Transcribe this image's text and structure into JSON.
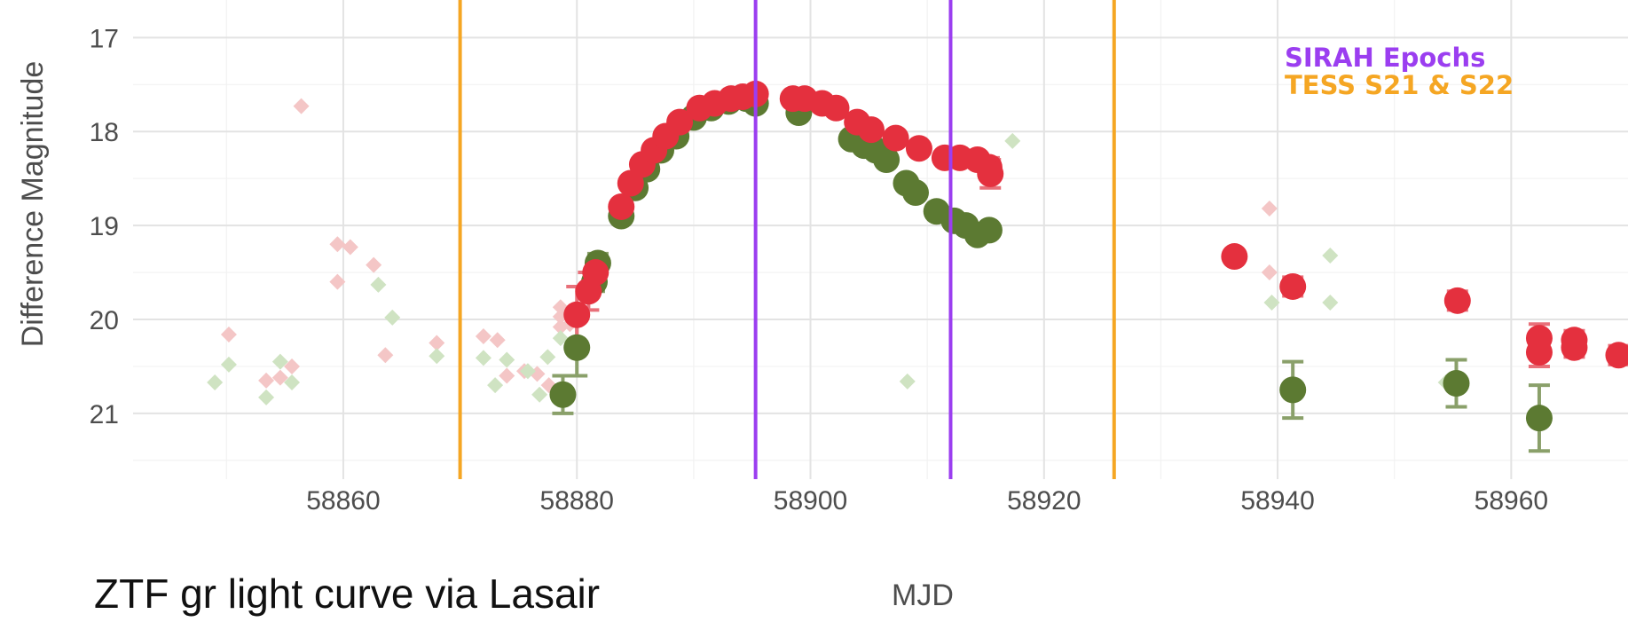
{
  "caption": "ZTF gr light curve via Lasair",
  "chart_data": {
    "type": "scatter",
    "title": "",
    "xlabel": "MJD",
    "ylabel": "Difference Magnitude",
    "xlim": [
      58842,
      58970
    ],
    "ylim": [
      21.7,
      16.6
    ],
    "y_reversed": true,
    "grid": true,
    "x_ticks": [
      "58860",
      "58880",
      "58900",
      "58920",
      "58940",
      "58960"
    ],
    "y_ticks": [
      "17",
      "18",
      "19",
      "20",
      "21"
    ],
    "colors": {
      "r_detection": "#e4303e",
      "g_detection": "#5c7a32",
      "r_limit": "#f4c6c6",
      "g_limit": "#cfe3c2",
      "sirah": "#9b3ef0",
      "tess": "#f5a623"
    },
    "vertical_lines": [
      {
        "group": "tess",
        "x": 58870
      },
      {
        "group": "sirah",
        "x": 58895.3
      },
      {
        "group": "sirah",
        "x": 58912
      },
      {
        "group": "tess",
        "x": 58926
      }
    ],
    "legend": {
      "placement": "top-right",
      "entries": [
        {
          "group": "sirah",
          "text": "SIRAH Epochs"
        },
        {
          "group": "tess",
          "text": "TESS S21 & S22"
        }
      ]
    },
    "series": [
      {
        "group": "g_detection",
        "points": [
          [
            58878.8,
            20.8,
            0.2
          ],
          [
            58880.0,
            20.3,
            0.3
          ],
          [
            58881.5,
            19.6,
            0.1
          ],
          [
            58881.8,
            19.4,
            0.1
          ],
          [
            58883.8,
            18.9,
            0.05
          ],
          [
            58885,
            18.6,
            0.05
          ],
          [
            58886,
            18.4,
            0.05
          ],
          [
            58887.2,
            18.2,
            0.05
          ],
          [
            58888.5,
            18.05,
            0.05
          ],
          [
            58890,
            17.85,
            0.05
          ],
          [
            58891.5,
            17.75,
            0.05
          ],
          [
            58893,
            17.68,
            0.05
          ],
          [
            58894.5,
            17.65,
            0.05
          ],
          [
            58895.3,
            17.7,
            0.05
          ],
          [
            58899,
            17.8,
            0.05
          ],
          [
            58903.5,
            18.08,
            0.05
          ],
          [
            58904.6,
            18.15,
            0.05
          ],
          [
            58905.6,
            18.2,
            0.05
          ],
          [
            58906.5,
            18.3,
            0.05
          ],
          [
            58908.2,
            18.55,
            0.05
          ],
          [
            58909,
            18.65,
            0.05
          ],
          [
            58910.8,
            18.85,
            0.05
          ],
          [
            58912.3,
            18.95,
            0.05
          ],
          [
            58913.3,
            19.0,
            0.05
          ],
          [
            58914.3,
            19.1,
            0.05
          ],
          [
            58915.3,
            19.05,
            0.05
          ],
          [
            58941.3,
            20.75,
            0.3
          ],
          [
            58955.3,
            20.68,
            0.25
          ],
          [
            58962.4,
            21.05,
            0.35
          ]
        ]
      },
      {
        "group": "r_detection",
        "points": [
          [
            58880.0,
            19.95,
            0.3
          ],
          [
            58881,
            19.7,
            0.2
          ],
          [
            58881.6,
            19.5,
            0.1
          ],
          [
            58883.8,
            18.8,
            0.05
          ],
          [
            58884.6,
            18.55,
            0.05
          ],
          [
            58885.6,
            18.35,
            0.05
          ],
          [
            58886.6,
            18.2,
            0.05
          ],
          [
            58887.6,
            18.05,
            0.05
          ],
          [
            58888.8,
            17.9,
            0.05
          ],
          [
            58890.5,
            17.75,
            0.05
          ],
          [
            58891.8,
            17.7,
            0.05
          ],
          [
            58893.2,
            17.65,
            0.05
          ],
          [
            58894.2,
            17.63,
            0.05
          ],
          [
            58895.3,
            17.6,
            0.05
          ],
          [
            58898.5,
            17.65,
            0.05
          ],
          [
            58899.5,
            17.65,
            0.05
          ],
          [
            58901,
            17.7,
            0.05
          ],
          [
            58902.2,
            17.75,
            0.05
          ],
          [
            58904,
            17.9,
            0.05
          ],
          [
            58905.2,
            17.98,
            0.05
          ],
          [
            58907.3,
            18.07,
            0.05
          ],
          [
            58909.3,
            18.18,
            0.05
          ],
          [
            58911.5,
            18.28,
            0.05
          ],
          [
            58912.8,
            18.28,
            0.05
          ],
          [
            58914.3,
            18.3,
            0.05
          ],
          [
            58915.3,
            18.38,
            0.1
          ],
          [
            58915.4,
            18.45,
            0.15
          ],
          [
            58936.3,
            19.33,
            0.05
          ],
          [
            58941.3,
            19.65,
            0.1
          ],
          [
            58955.4,
            19.8,
            0.1
          ],
          [
            58962.4,
            20.2,
            0.15
          ],
          [
            58962.4,
            20.35,
            0.15
          ],
          [
            58965.4,
            20.22,
            0.1
          ],
          [
            58965.4,
            20.3,
            0.1
          ],
          [
            58969.2,
            20.38,
            0.1
          ]
        ]
      },
      {
        "group": "r_limit",
        "points": [
          [
            58850.2,
            20.16
          ],
          [
            58853.4,
            20.65
          ],
          [
            58854.6,
            20.62
          ],
          [
            58855.6,
            20.5
          ],
          [
            58856.4,
            17.73
          ],
          [
            58859.5,
            19.2
          ],
          [
            58859.5,
            19.6
          ],
          [
            58860.6,
            19.23
          ],
          [
            58862.6,
            19.42
          ],
          [
            58863.6,
            20.38
          ],
          [
            58868,
            20.25
          ],
          [
            58872,
            20.18
          ],
          [
            58873.2,
            20.22
          ],
          [
            58874,
            20.6
          ],
          [
            58875.5,
            20.55
          ],
          [
            58876.6,
            20.58
          ],
          [
            58877.6,
            20.7
          ],
          [
            58878.6,
            19.87
          ],
          [
            58878.6,
            19.97
          ],
          [
            58878.6,
            20.08
          ],
          [
            58879.4,
            20.05
          ],
          [
            58939.3,
            18.82
          ],
          [
            58939.3,
            19.5
          ]
        ]
      },
      {
        "group": "g_limit",
        "points": [
          [
            58849,
            20.67
          ],
          [
            58850.2,
            20.48
          ],
          [
            58853.4,
            20.83
          ],
          [
            58854.6,
            20.45
          ],
          [
            58855.6,
            20.67
          ],
          [
            58863,
            19.63
          ],
          [
            58864.2,
            19.98
          ],
          [
            58868,
            20.39
          ],
          [
            58872,
            20.41
          ],
          [
            58873,
            20.7
          ],
          [
            58874,
            20.43
          ],
          [
            58875.8,
            20.55
          ],
          [
            58876.8,
            20.8
          ],
          [
            58877.5,
            20.4
          ],
          [
            58878.6,
            20.2
          ],
          [
            58908.3,
            20.66
          ],
          [
            58917.3,
            18.1
          ],
          [
            58939.5,
            19.82
          ],
          [
            58944.5,
            19.32
          ],
          [
            58944.5,
            19.82
          ],
          [
            58954.4,
            20.67
          ]
        ]
      }
    ]
  }
}
